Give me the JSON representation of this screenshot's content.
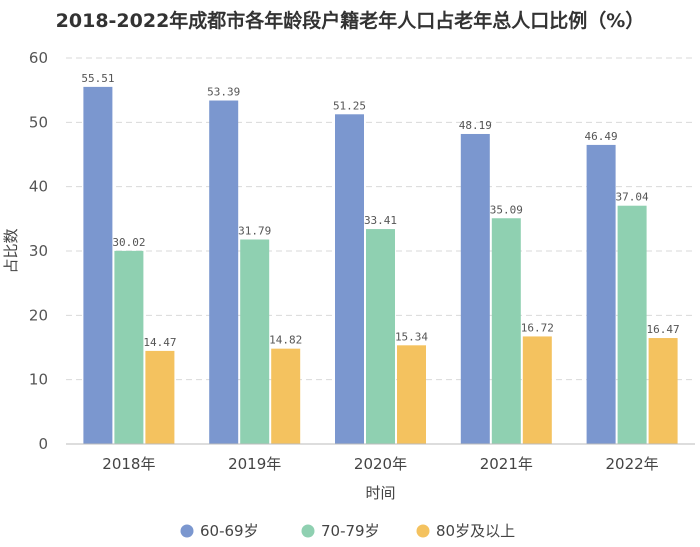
{
  "chart_data": {
    "type": "bar",
    "title": "2018-2022年成都市各年龄段户籍老年人口占老年总人口比例（%）",
    "xlabel": "时间",
    "ylabel": "占比数",
    "ylim": [
      0,
      60
    ],
    "yticks": [
      0,
      10,
      20,
      30,
      40,
      50,
      60
    ],
    "grid": true,
    "legend_position": "bottom",
    "categories": [
      "2018年",
      "2019年",
      "2020年",
      "2021年",
      "2022年"
    ],
    "series": [
      {
        "name": "60-69岁",
        "color": "#7b97cf",
        "values": [
          55.51,
          53.39,
          51.25,
          48.19,
          46.49
        ],
        "labels": [
          "55.51",
          "53.39",
          "51.25",
          "48.19",
          "46.49"
        ]
      },
      {
        "name": "70-79岁",
        "color": "#8fd0b1",
        "values": [
          30.02,
          31.79,
          33.41,
          35.09,
          37.04
        ],
        "labels": [
          "30.02",
          "31.79",
          "33.41",
          "35.09",
          "37.04"
        ]
      },
      {
        "name": "80岁及以上",
        "color": "#f4c25f",
        "values": [
          14.47,
          14.82,
          15.34,
          16.72,
          16.47
        ],
        "labels": [
          "14.47",
          "14.82",
          "15.34",
          "16.72",
          "16.47"
        ]
      }
    ]
  }
}
